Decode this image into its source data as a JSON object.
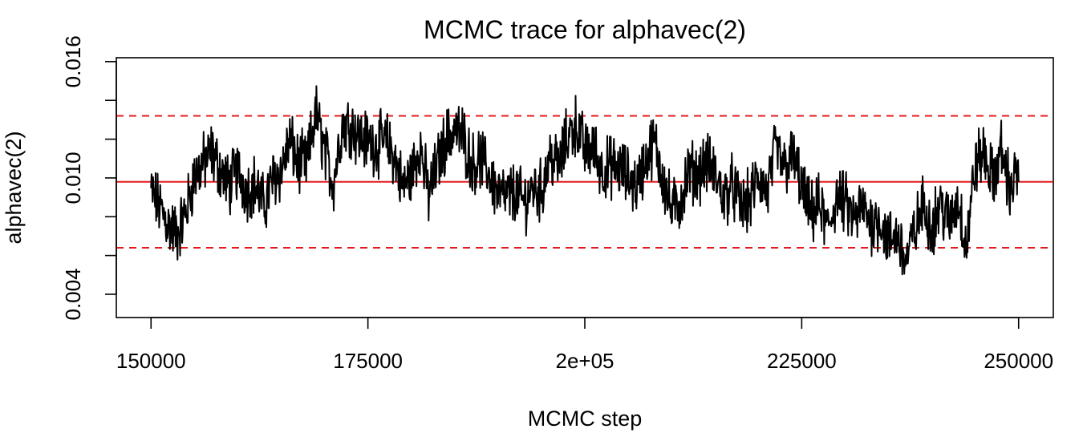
{
  "chart_data": {
    "type": "line",
    "title": "MCMC trace for alphavec(2)",
    "xlabel": "MCMC step",
    "ylabel": "alphavec(2)",
    "xlim": [
      146000,
      254000
    ],
    "ylim": [
      0.0028,
      0.0162
    ],
    "x_ticks": [
      {
        "value": 150000,
        "label": "150000"
      },
      {
        "value": 175000,
        "label": "175000"
      },
      {
        "value": 200000,
        "label": "2e+05"
      },
      {
        "value": 225000,
        "label": "225000"
      },
      {
        "value": 250000,
        "label": "250000"
      }
    ],
    "y_ticks": [
      0.004,
      0.006,
      0.008,
      0.01,
      0.012,
      0.014,
      0.016
    ],
    "y_tick_labels": [
      {
        "value": 0.004,
        "label": "0.004"
      },
      {
        "value": 0.01,
        "label": "0.010"
      },
      {
        "value": 0.016,
        "label": "0.016"
      }
    ],
    "reference_lines": [
      {
        "style": "solid",
        "color": "#e31a1c",
        "y": 0.0098
      },
      {
        "style": "dashed",
        "color": "#e31a1c",
        "y": 0.0132
      },
      {
        "style": "dashed",
        "color": "#e31a1c",
        "y": 0.0064
      }
    ],
    "series": [
      {
        "color": "#000000",
        "x": [
          150000,
          151000,
          152000,
          153000,
          154000,
          155000,
          156000,
          157000,
          158000,
          159000,
          160000,
          161000,
          162000,
          163000,
          164000,
          165000,
          166000,
          167000,
          168000,
          169000,
          170000,
          171000,
          172000,
          173000,
          174000,
          175000,
          176000,
          177000,
          178000,
          179000,
          180000,
          181000,
          182000,
          183000,
          184000,
          185000,
          186000,
          187000,
          188000,
          189000,
          190000,
          191000,
          192000,
          193000,
          194000,
          195000,
          196000,
          197000,
          198000,
          199000,
          200000,
          201000,
          202000,
          203000,
          204000,
          205000,
          206000,
          207000,
          208000,
          209000,
          210000,
          211000,
          212000,
          213000,
          214000,
          215000,
          216000,
          217000,
          218000,
          219000,
          220000,
          221000,
          222000,
          223000,
          224000,
          225000,
          226000,
          227000,
          228000,
          229000,
          230000,
          231000,
          232000,
          233000,
          234000,
          235000,
          236000,
          237000,
          238000,
          239000,
          240000,
          241000,
          242000,
          243000,
          244000,
          245000,
          246000,
          247000,
          248000,
          249000,
          250000
        ],
        "y": [
          0.0093,
          0.0085,
          0.0076,
          0.0071,
          0.0082,
          0.0101,
          0.0107,
          0.0113,
          0.0104,
          0.0096,
          0.0104,
          0.0094,
          0.0097,
          0.0085,
          0.0099,
          0.0104,
          0.0119,
          0.0107,
          0.0108,
          0.0134,
          0.0114,
          0.0097,
          0.0127,
          0.0128,
          0.0121,
          0.0119,
          0.0117,
          0.0119,
          0.0112,
          0.0095,
          0.0102,
          0.0117,
          0.0091,
          0.0107,
          0.012,
          0.0125,
          0.0121,
          0.0107,
          0.011,
          0.0102,
          0.0092,
          0.009,
          0.0093,
          0.0087,
          0.0095,
          0.0093,
          0.0112,
          0.0106,
          0.0121,
          0.0128,
          0.0114,
          0.0115,
          0.0104,
          0.0106,
          0.0105,
          0.01,
          0.0096,
          0.0109,
          0.0119,
          0.01,
          0.0083,
          0.0088,
          0.0104,
          0.0102,
          0.0108,
          0.0102,
          0.009,
          0.0096,
          0.0085,
          0.0088,
          0.0101,
          0.0092,
          0.0115,
          0.0105,
          0.0111,
          0.0095,
          0.0081,
          0.0086,
          0.0073,
          0.009,
          0.0087,
          0.0078,
          0.0085,
          0.0077,
          0.0079,
          0.0067,
          0.0071,
          0.0057,
          0.0072,
          0.0086,
          0.0075,
          0.0087,
          0.0076,
          0.0089,
          0.0065,
          0.0107,
          0.0113,
          0.0099,
          0.0114,
          0.0095,
          0.0103
        ]
      }
    ]
  }
}
